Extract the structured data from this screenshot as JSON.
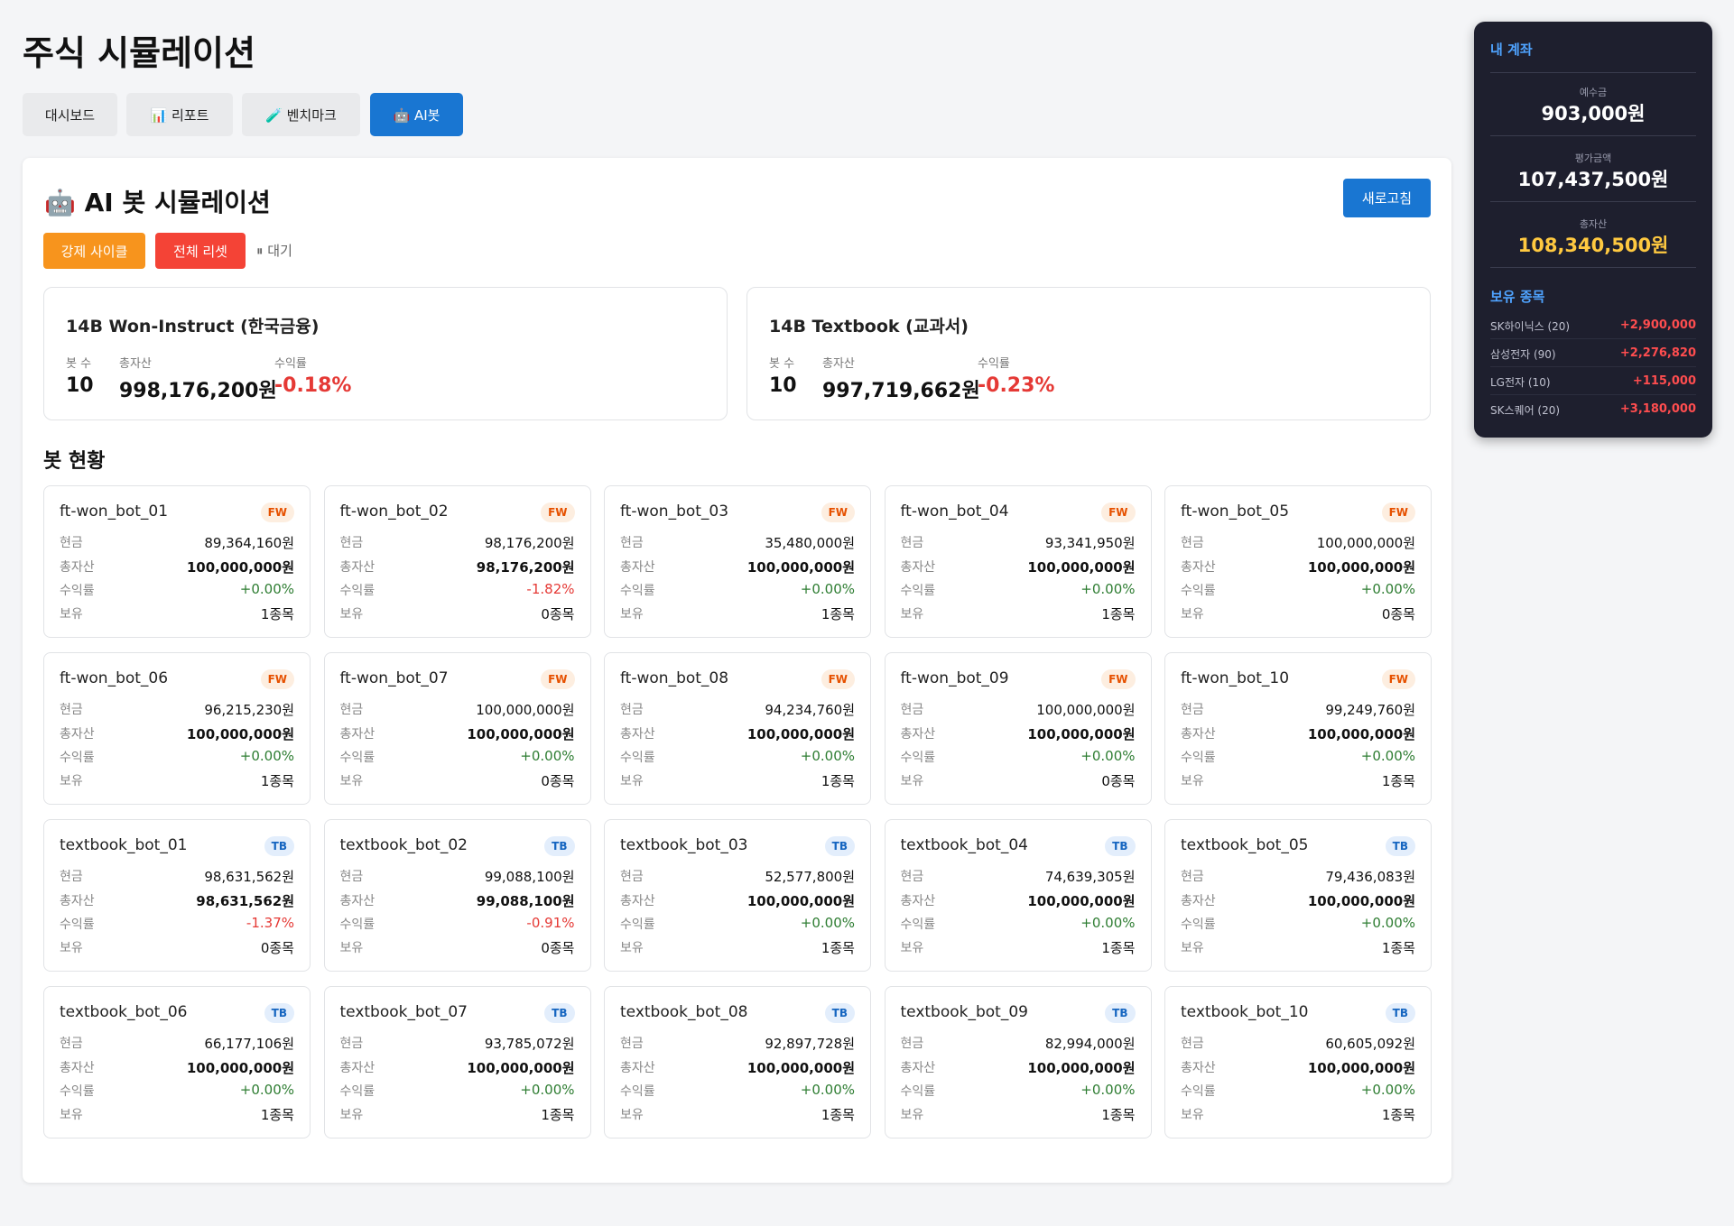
{
  "header": {
    "title": "주식 시뮬레이션"
  },
  "tabs": [
    "대시보드",
    "📊 리포트",
    "🧪 벤치마크",
    "🤖 AI봇"
  ],
  "panel": {
    "title": "🤖 AI 봇 시뮬레이션",
    "refresh": "새로고침",
    "buttons": [
      "강제 사이클",
      "전체 리셋"
    ],
    "status": "⏸ 대기",
    "summary_labels": [
      "봇 수",
      "총자산",
      "수익률"
    ],
    "groups": [
      {
        "name": "14B Won-Instruct (한국금융)",
        "bots": "10",
        "total": "998,176,200원",
        "return": "-0.18%"
      },
      {
        "name": "14B Textbook (교과서)",
        "bots": "10",
        "total": "997,719,662원",
        "return": "-0.23%"
      }
    ],
    "section_title": "봇 현황",
    "bot_labels": [
      "현금",
      "총자산",
      "수익률",
      "보유"
    ],
    "bots": [
      [
        "ft-won_bot_01",
        "FW",
        "89,364,160원",
        "100,000,000원",
        "+0.00%",
        "1종목"
      ],
      [
        "ft-won_bot_02",
        "FW",
        "98,176,200원",
        "98,176,200원",
        "-1.82%",
        "0종목"
      ],
      [
        "ft-won_bot_03",
        "FW",
        "35,480,000원",
        "100,000,000원",
        "+0.00%",
        "1종목"
      ],
      [
        "ft-won_bot_04",
        "FW",
        "93,341,950원",
        "100,000,000원",
        "+0.00%",
        "1종목"
      ],
      [
        "ft-won_bot_05",
        "FW",
        "100,000,000원",
        "100,000,000원",
        "+0.00%",
        "0종목"
      ],
      [
        "ft-won_bot_06",
        "FW",
        "96,215,230원",
        "100,000,000원",
        "+0.00%",
        "1종목"
      ],
      [
        "ft-won_bot_07",
        "FW",
        "100,000,000원",
        "100,000,000원",
        "+0.00%",
        "0종목"
      ],
      [
        "ft-won_bot_08",
        "FW",
        "94,234,760원",
        "100,000,000원",
        "+0.00%",
        "1종목"
      ],
      [
        "ft-won_bot_09",
        "FW",
        "100,000,000원",
        "100,000,000원",
        "+0.00%",
        "0종목"
      ],
      [
        "ft-won_bot_10",
        "FW",
        "99,249,760원",
        "100,000,000원",
        "+0.00%",
        "1종목"
      ],
      [
        "textbook_bot_01",
        "TB",
        "98,631,562원",
        "98,631,562원",
        "-1.37%",
        "0종목"
      ],
      [
        "textbook_bot_02",
        "TB",
        "99,088,100원",
        "99,088,100원",
        "-0.91%",
        "0종목"
      ],
      [
        "textbook_bot_03",
        "TB",
        "52,577,800원",
        "100,000,000원",
        "+0.00%",
        "1종목"
      ],
      [
        "textbook_bot_04",
        "TB",
        "74,639,305원",
        "100,000,000원",
        "+0.00%",
        "1종목"
      ],
      [
        "textbook_bot_05",
        "TB",
        "79,436,083원",
        "100,000,000원",
        "+0.00%",
        "1종목"
      ],
      [
        "textbook_bot_06",
        "TB",
        "66,177,106원",
        "100,000,000원",
        "+0.00%",
        "1종목"
      ],
      [
        "textbook_bot_07",
        "TB",
        "93,785,072원",
        "100,000,000원",
        "+0.00%",
        "1종목"
      ],
      [
        "textbook_bot_08",
        "TB",
        "92,897,728원",
        "100,000,000원",
        "+0.00%",
        "1종목"
      ],
      [
        "textbook_bot_09",
        "TB",
        "82,994,000원",
        "100,000,000원",
        "+0.00%",
        "1종목"
      ],
      [
        "textbook_bot_10",
        "TB",
        "60,605,092원",
        "100,000,000원",
        "+0.00%",
        "1종목"
      ]
    ]
  },
  "account": {
    "title": "내 계좌",
    "items": [
      {
        "label": "예수금",
        "value": "903,000원"
      },
      {
        "label": "평가금액",
        "value": "107,437,500원"
      },
      {
        "label": "총자산",
        "value": "108,340,500원"
      }
    ],
    "holdings_title": "보유 종목",
    "holdings": [
      [
        "SK하이닉스 (20)",
        "+2,900,000"
      ],
      [
        "삼성전자 (90)",
        "+2,276,820"
      ],
      [
        "LG전자 (10)",
        "+115,000"
      ],
      [
        "SK스퀘어 (20)",
        "+3,180,000"
      ]
    ]
  }
}
